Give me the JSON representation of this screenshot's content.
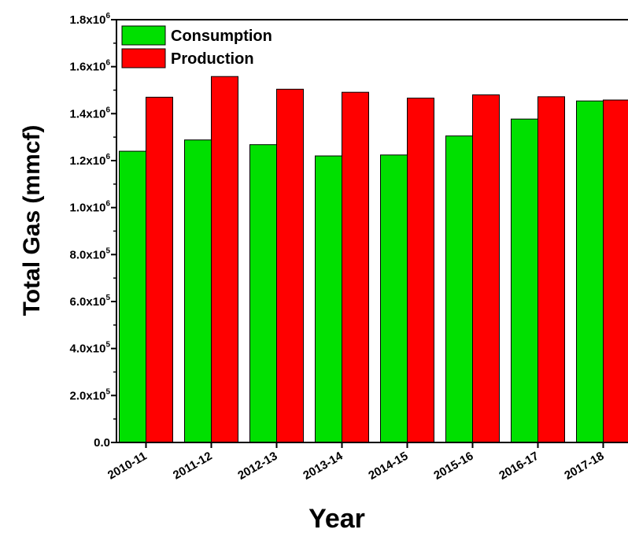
{
  "chart_data": {
    "type": "bar",
    "xlabel": "Year",
    "ylabel": "Total Gas (mmcf)",
    "categories": [
      "2010-11",
      "2011-12",
      "2012-13",
      "2013-14",
      "2014-15",
      "2015-16",
      "2016-17",
      "2017-18"
    ],
    "series": [
      {
        "name": "Consumption",
        "color": "#00e000",
        "values": [
          1240000,
          1288000,
          1268000,
          1220000,
          1224000,
          1305000,
          1377000,
          1454000
        ]
      },
      {
        "name": "Production",
        "color": "#ff0000",
        "values": [
          1470000,
          1558000,
          1504000,
          1491000,
          1466000,
          1480000,
          1472000,
          1458000
        ]
      }
    ],
    "ylim": [
      0,
      1800000
    ],
    "yticks": [
      {
        "value": 0,
        "mant": "0.0",
        "exp": ""
      },
      {
        "value": 200000,
        "mant": "2.0x10",
        "exp": "5"
      },
      {
        "value": 400000,
        "mant": "4.0x10",
        "exp": "5"
      },
      {
        "value": 600000,
        "mant": "6.0x10",
        "exp": "5"
      },
      {
        "value": 800000,
        "mant": "8.0x10",
        "exp": "5"
      },
      {
        "value": 1000000,
        "mant": "1.0x10",
        "exp": "6"
      },
      {
        "value": 1200000,
        "mant": "1.2x10",
        "exp": "6"
      },
      {
        "value": 1400000,
        "mant": "1.4x10",
        "exp": "6"
      },
      {
        "value": 1600000,
        "mant": "1.6x10",
        "exp": "6"
      },
      {
        "value": 1800000,
        "mant": "1.8x10",
        "exp": "6"
      }
    ],
    "legend_position": "top-left",
    "grid": false
  }
}
